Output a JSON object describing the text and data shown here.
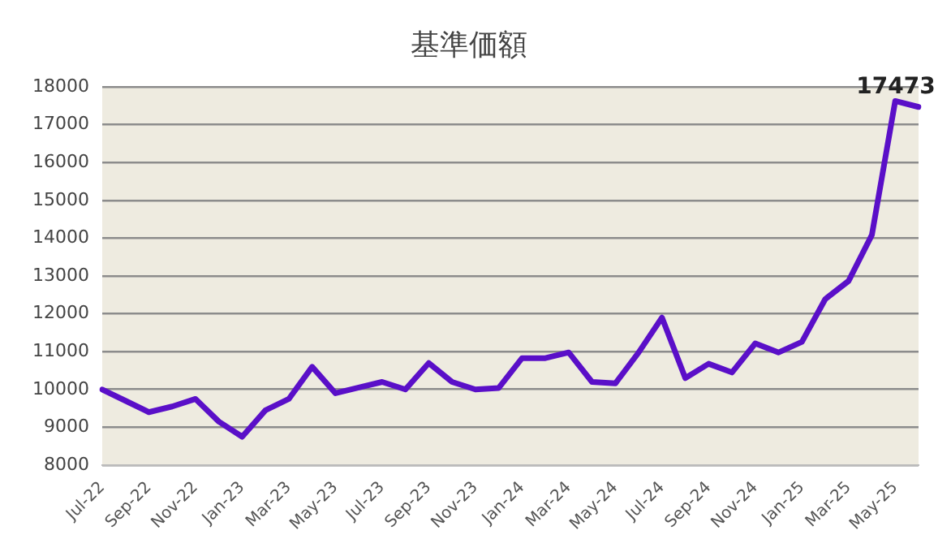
{
  "chart_data": {
    "type": "line",
    "title": "基準価額",
    "categories": [
      "Jul-22",
      null,
      "Sep-22",
      null,
      "Nov-22",
      null,
      "Jan-23",
      null,
      "Mar-23",
      null,
      "May-23",
      null,
      "Jul-23",
      null,
      "Sep-23",
      null,
      "Nov-23",
      null,
      "Jan-24",
      null,
      "Mar-24",
      null,
      "May-24",
      null,
      "Jul-24",
      null,
      "Sep-24",
      null,
      "Nov-24",
      null,
      "Jan-25",
      null,
      "Mar-25",
      null,
      "May-25",
      null
    ],
    "series": [
      {
        "color": "#5a0fc8",
        "values": [
          10000,
          9700,
          9400,
          9550,
          9750,
          9150,
          8750,
          9450,
          9750,
          10600,
          9900,
          10050,
          10200,
          10000,
          10700,
          10200,
          10000,
          10040,
          10830,
          10830,
          10980,
          10200,
          10160,
          10980,
          11900,
          10300,
          10680,
          10450,
          11220,
          10980,
          11260,
          12390,
          12870,
          14090,
          17630,
          17473
        ],
        "value_labels": [
          null,
          null,
          null,
          null,
          null,
          null,
          null,
          null,
          null,
          null,
          null,
          null,
          null,
          null,
          null,
          null,
          null,
          null,
          null,
          null,
          null,
          null,
          null,
          null,
          null,
          null,
          null,
          null,
          null,
          null,
          null,
          null,
          null,
          null,
          null,
          "17473"
        ]
      }
    ],
    "ylim": [
      8000,
      18000
    ],
    "yticks": [
      8000,
      9000,
      10000,
      11000,
      12000,
      13000,
      14000,
      15000,
      16000,
      17000,
      18000
    ],
    "grid": "y",
    "legend": false,
    "marker": "none",
    "line_style": "solid"
  }
}
